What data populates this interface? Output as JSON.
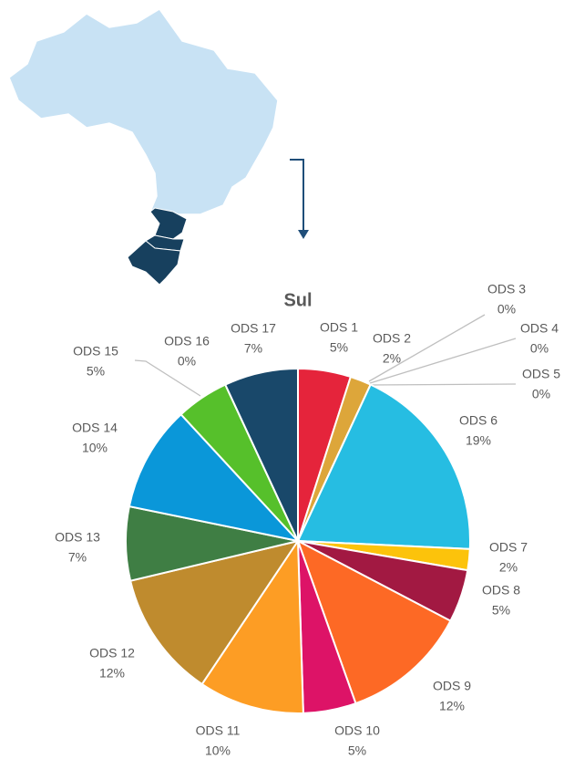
{
  "chart_data": {
    "type": "pie",
    "title": "Sul",
    "categories": [
      "ODS 1",
      "ODS 2",
      "ODS 3",
      "ODS 4",
      "ODS 5",
      "ODS 6",
      "ODS 7",
      "ODS 8",
      "ODS 9",
      "ODS 10",
      "ODS 11",
      "ODS 12",
      "ODS 13",
      "ODS 14",
      "ODS 15",
      "ODS 16",
      "ODS 17"
    ],
    "values": [
      5,
      2,
      0,
      0,
      0,
      19,
      2,
      5,
      12,
      5,
      10,
      12,
      7,
      10,
      5,
      0,
      7
    ],
    "value_labels": [
      "5%",
      "2%",
      "0%",
      "0%",
      "0%",
      "19%",
      "2%",
      "5%",
      "12%",
      "5%",
      "10%",
      "12%",
      "7%",
      "10%",
      "5%",
      "0%",
      "7%"
    ],
    "colors": [
      "#e5243b",
      "#dda63a",
      "#4c9f38",
      "#c5192d",
      "#ff3a21",
      "#26bde2",
      "#fcc30b",
      "#a21942",
      "#fd6925",
      "#dd1367",
      "#fd9d24",
      "#bf8b2e",
      "#3f7e44",
      "#0a97d9",
      "#56c02b",
      "#00689d",
      "#19486a"
    ]
  }
}
